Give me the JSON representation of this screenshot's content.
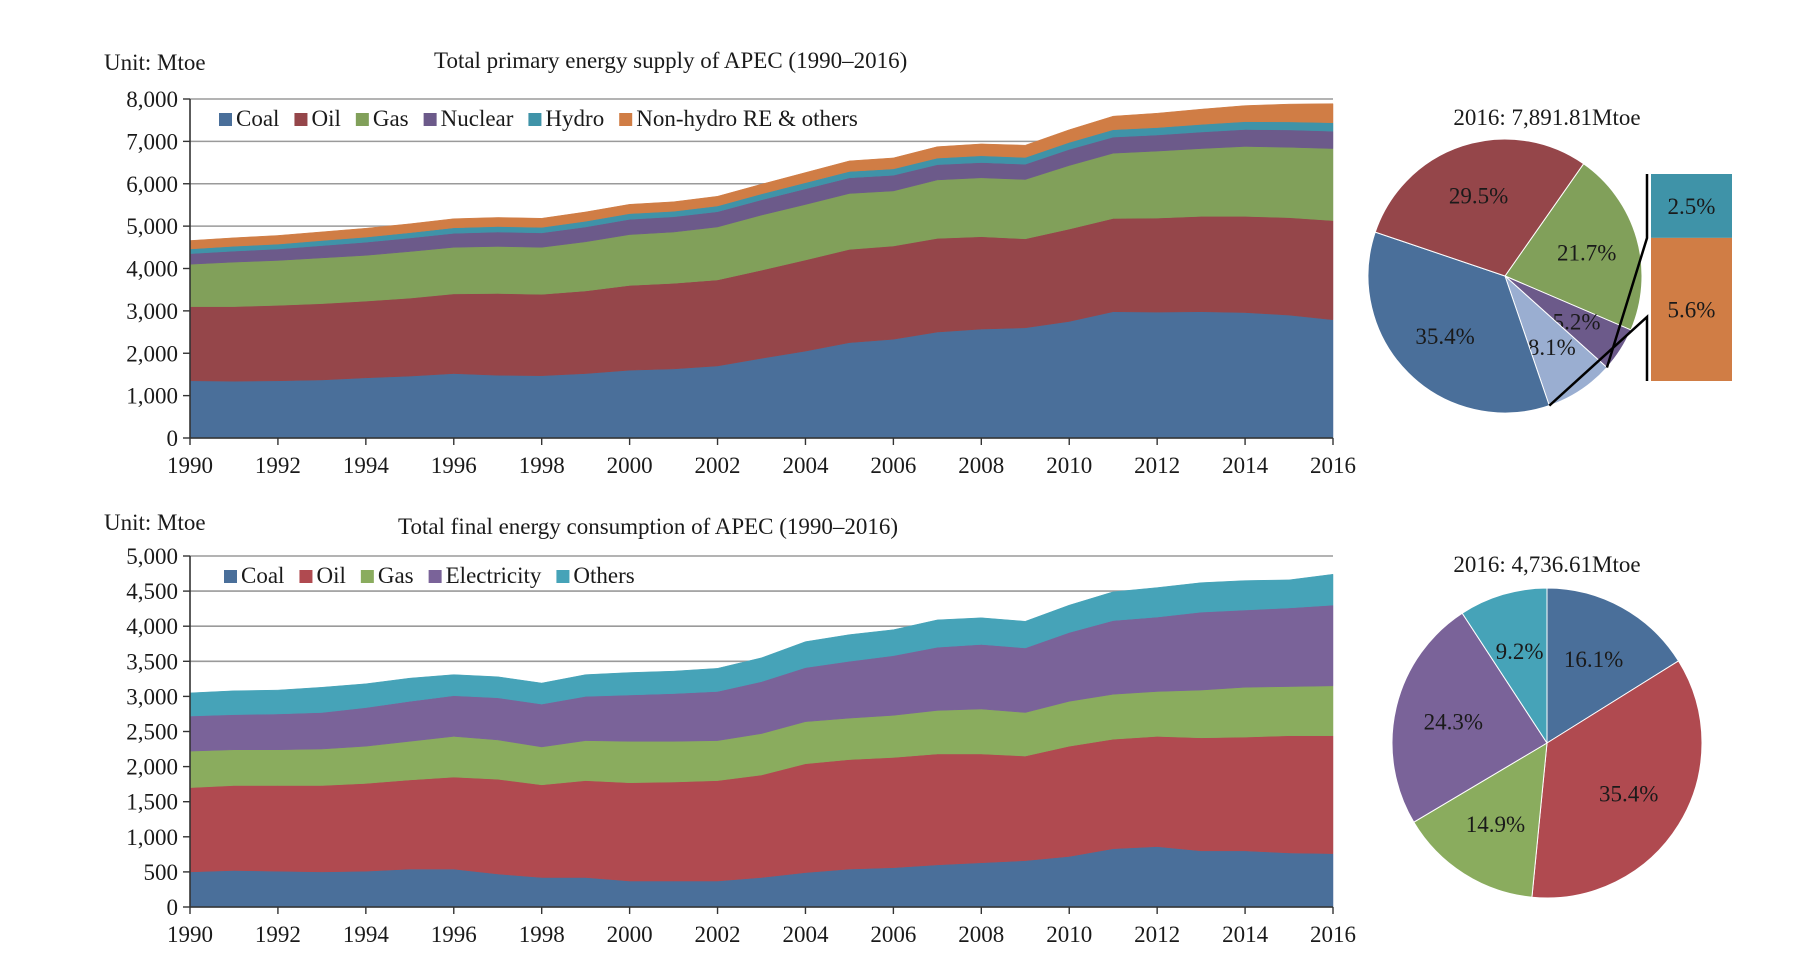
{
  "chart_data": [
    {
      "type": "area",
      "stacked": true,
      "title": "Total primary energy supply of APEC (1990–2016)",
      "unit_label": "Unit: Mtoe",
      "x": [
        1990,
        1991,
        1992,
        1993,
        1994,
        1995,
        1996,
        1997,
        1998,
        1999,
        2000,
        2001,
        2002,
        2003,
        2004,
        2005,
        2006,
        2007,
        2008,
        2009,
        2010,
        2011,
        2012,
        2013,
        2014,
        2015,
        2016
      ],
      "xticks": [
        "1990",
        "1992",
        "1994",
        "1996",
        "1998",
        "2000",
        "2002",
        "2004",
        "2006",
        "2008",
        "2010",
        "2012",
        "2014",
        "2016"
      ],
      "yticks": [
        "0",
        "1,000",
        "2,000",
        "3,000",
        "4,000",
        "5,000",
        "6,000",
        "7,000",
        "8,000"
      ],
      "ylim": [
        0,
        8000
      ],
      "grid": true,
      "legend_position": "top-left",
      "series": [
        {
          "name": "Coal",
          "color": "#4a6f9a",
          "values": [
            1350,
            1340,
            1350,
            1370,
            1420,
            1460,
            1520,
            1480,
            1470,
            1520,
            1600,
            1630,
            1700,
            1880,
            2050,
            2250,
            2330,
            2500,
            2570,
            2600,
            2750,
            2980,
            2970,
            2980,
            2960,
            2900,
            2790
          ]
        },
        {
          "name": "Oil",
          "color": "#95464a",
          "values": [
            1750,
            1760,
            1780,
            1800,
            1810,
            1840,
            1880,
            1930,
            1920,
            1950,
            2000,
            2020,
            2030,
            2080,
            2150,
            2200,
            2200,
            2210,
            2180,
            2100,
            2180,
            2200,
            2220,
            2250,
            2270,
            2300,
            2340
          ]
        },
        {
          "name": "Gas",
          "color": "#81a05a",
          "values": [
            1000,
            1050,
            1060,
            1080,
            1080,
            1100,
            1100,
            1110,
            1110,
            1160,
            1200,
            1210,
            1250,
            1300,
            1310,
            1320,
            1300,
            1380,
            1390,
            1400,
            1500,
            1540,
            1580,
            1600,
            1650,
            1660,
            1700
          ]
        },
        {
          "name": "Nuclear",
          "color": "#6c5a8a",
          "values": [
            250,
            260,
            270,
            290,
            310,
            320,
            330,
            340,
            340,
            350,
            360,
            360,
            360,
            360,
            370,
            370,
            370,
            360,
            360,
            360,
            380,
            380,
            380,
            390,
            400,
            410,
            410
          ]
        },
        {
          "name": "Hydro",
          "color": "#3f93a8",
          "values": [
            110,
            115,
            115,
            120,
            120,
            125,
            130,
            130,
            130,
            135,
            135,
            130,
            135,
            140,
            145,
            150,
            150,
            155,
            160,
            160,
            165,
            175,
            175,
            180,
            185,
            190,
            200
          ]
        },
        {
          "name": "Non-hydro RE & others",
          "color": "#d07d45",
          "values": [
            200,
            200,
            205,
            205,
            210,
            210,
            215,
            215,
            215,
            220,
            220,
            225,
            230,
            230,
            240,
            250,
            260,
            270,
            280,
            290,
            300,
            320,
            340,
            360,
            380,
            420,
            450
          ]
        }
      ]
    },
    {
      "type": "pie",
      "title": "2016: 7,891.81Mtoe",
      "slices": [
        {
          "label": "21.7%",
          "value": 21.7,
          "color": "#81a05a"
        },
        {
          "label": "5.2%",
          "value": 5.2,
          "color": "#6c5a8a"
        },
        {
          "label": "8.1%",
          "value": 8.1,
          "color": "#9aaed1"
        },
        {
          "label": "35.4%",
          "value": 35.4,
          "color": "#4a6f9a"
        },
        {
          "label": "29.5%",
          "value": 29.5,
          "color": "#95464a"
        }
      ],
      "breakdown": {
        "source_slice": "8.1%",
        "segments": [
          {
            "label": "2.5%",
            "value": 2.5,
            "color": "#3f93a8"
          },
          {
            "label": "5.6%",
            "value": 5.6,
            "color": "#d07d45"
          }
        ]
      }
    },
    {
      "type": "area",
      "stacked": true,
      "title": "Total final energy consumption of APEC (1990–2016)",
      "unit_label": "Unit: Mtoe",
      "x": [
        1990,
        1991,
        1992,
        1993,
        1994,
        1995,
        1996,
        1997,
        1998,
        1999,
        2000,
        2001,
        2002,
        2003,
        2004,
        2005,
        2006,
        2007,
        2008,
        2009,
        2010,
        2011,
        2012,
        2013,
        2014,
        2015,
        2016
      ],
      "xticks": [
        "1990",
        "1992",
        "1994",
        "1996",
        "1998",
        "2000",
        "2002",
        "2004",
        "2006",
        "2008",
        "2010",
        "2012",
        "2014",
        "2016"
      ],
      "yticks": [
        "0",
        "500",
        "1,000",
        "1,500",
        "2,000",
        "2,500",
        "3,000",
        "3,500",
        "4,000",
        "4,500",
        "5,000"
      ],
      "ylim": [
        0,
        5000
      ],
      "grid": true,
      "legend_position": "top-left",
      "series": [
        {
          "name": "Coal",
          "color": "#4a6f9a",
          "values": [
            500,
            520,
            510,
            500,
            510,
            540,
            540,
            470,
            420,
            420,
            370,
            370,
            370,
            420,
            490,
            540,
            560,
            600,
            630,
            660,
            720,
            830,
            860,
            800,
            800,
            770,
            760
          ]
        },
        {
          "name": "Oil",
          "color": "#b04a50",
          "values": [
            1200,
            1210,
            1220,
            1230,
            1250,
            1270,
            1310,
            1350,
            1320,
            1380,
            1400,
            1410,
            1430,
            1460,
            1550,
            1560,
            1570,
            1580,
            1550,
            1490,
            1570,
            1560,
            1570,
            1610,
            1620,
            1670,
            1680
          ]
        },
        {
          "name": "Gas",
          "color": "#8aac5e",
          "values": [
            520,
            510,
            510,
            520,
            530,
            550,
            580,
            560,
            540,
            570,
            590,
            580,
            570,
            590,
            600,
            590,
            600,
            620,
            640,
            620,
            640,
            640,
            640,
            680,
            710,
            700,
            710
          ]
        },
        {
          "name": "Electricity",
          "color": "#7a6399",
          "values": [
            500,
            500,
            510,
            520,
            550,
            570,
            580,
            600,
            610,
            630,
            660,
            680,
            700,
            740,
            770,
            810,
            850,
            900,
            920,
            920,
            980,
            1050,
            1060,
            1110,
            1100,
            1120,
            1150
          ]
        },
        {
          "name": "Others",
          "color": "#46a3b8",
          "values": [
            330,
            340,
            340,
            360,
            340,
            330,
            300,
            300,
            300,
            310,
            320,
            320,
            330,
            340,
            370,
            380,
            370,
            390,
            380,
            380,
            390,
            410,
            420,
            420,
            420,
            400,
            440
          ]
        }
      ]
    },
    {
      "type": "pie",
      "title": "2016: 4,736.61Mtoe",
      "slices": [
        {
          "label": "16.1%",
          "value": 16.1,
          "color": "#4a6f9a"
        },
        {
          "label": "35.4%",
          "value": 35.4,
          "color": "#b04a50"
        },
        {
          "label": "14.9%",
          "value": 14.9,
          "color": "#8aac5e"
        },
        {
          "label": "24.3%",
          "value": 24.3,
          "color": "#7a6399"
        },
        {
          "label": "9.2%",
          "value": 9.2,
          "color": "#46a3b8"
        }
      ]
    }
  ]
}
